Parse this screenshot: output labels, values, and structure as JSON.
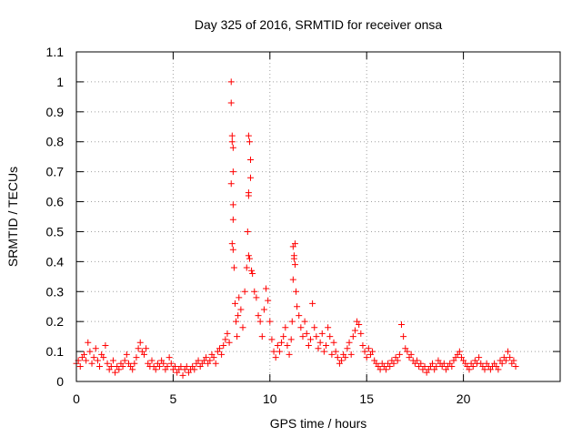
{
  "chart_data": {
    "type": "scatter",
    "title": "Day 325 of 2016, SRMTID for receiver onsa",
    "xlabel": "GPS time / hours",
    "ylabel": "SRMTID / TECUs",
    "xlim": [
      0,
      25
    ],
    "ylim": [
      0,
      1.1
    ],
    "xticks": [
      0,
      5,
      10,
      15,
      20
    ],
    "xtick_labels": [
      "0",
      "5",
      "10",
      "15",
      "20"
    ],
    "yticks": [
      0,
      0.1,
      0.2,
      0.3,
      0.4,
      0.5,
      0.6,
      0.7,
      0.8,
      0.9,
      1,
      1.1
    ],
    "ytick_labels": [
      "0",
      "0.1",
      "0.2",
      "0.3",
      "0.4",
      "0.5",
      "0.6",
      "0.7",
      "0.8",
      "0.9",
      "1",
      "1.1"
    ],
    "grid": true,
    "legend": "none",
    "marker": "+",
    "color": "#ff0000",
    "series": [
      {
        "name": "SRMTID",
        "points": [
          [
            0.0,
            0.06
          ],
          [
            0.1,
            0.07
          ],
          [
            0.2,
            0.05
          ],
          [
            0.3,
            0.08
          ],
          [
            0.4,
            0.09
          ],
          [
            0.5,
            0.07
          ],
          [
            0.6,
            0.13
          ],
          [
            0.7,
            0.1
          ],
          [
            0.8,
            0.06
          ],
          [
            0.9,
            0.08
          ],
          [
            1.0,
            0.11
          ],
          [
            1.1,
            0.07
          ],
          [
            1.2,
            0.05
          ],
          [
            1.3,
            0.09
          ],
          [
            1.4,
            0.08
          ],
          [
            1.5,
            0.12
          ],
          [
            1.6,
            0.06
          ],
          [
            1.7,
            0.04
          ],
          [
            1.8,
            0.05
          ],
          [
            1.9,
            0.07
          ],
          [
            2.0,
            0.03
          ],
          [
            2.1,
            0.05
          ],
          [
            2.2,
            0.04
          ],
          [
            2.3,
            0.06
          ],
          [
            2.4,
            0.05
          ],
          [
            2.5,
            0.07
          ],
          [
            2.6,
            0.09
          ],
          [
            2.7,
            0.06
          ],
          [
            2.8,
            0.05
          ],
          [
            2.9,
            0.04
          ],
          [
            3.0,
            0.06
          ],
          [
            3.1,
            0.08
          ],
          [
            3.2,
            0.11
          ],
          [
            3.3,
            0.13
          ],
          [
            3.4,
            0.1
          ],
          [
            3.5,
            0.09
          ],
          [
            3.6,
            0.11
          ],
          [
            3.7,
            0.06
          ],
          [
            3.8,
            0.05
          ],
          [
            3.9,
            0.07
          ],
          [
            4.0,
            0.05
          ],
          [
            4.1,
            0.04
          ],
          [
            4.2,
            0.06
          ],
          [
            4.3,
            0.05
          ],
          [
            4.4,
            0.07
          ],
          [
            4.5,
            0.06
          ],
          [
            4.6,
            0.04
          ],
          [
            4.7,
            0.05
          ],
          [
            4.8,
            0.08
          ],
          [
            4.9,
            0.06
          ],
          [
            5.0,
            0.04
          ],
          [
            5.1,
            0.05
          ],
          [
            5.2,
            0.03
          ],
          [
            5.3,
            0.04
          ],
          [
            5.4,
            0.05
          ],
          [
            5.5,
            0.02
          ],
          [
            5.6,
            0.04
          ],
          [
            5.7,
            0.05
          ],
          [
            5.8,
            0.03
          ],
          [
            5.9,
            0.04
          ],
          [
            6.0,
            0.05
          ],
          [
            6.1,
            0.04
          ],
          [
            6.2,
            0.06
          ],
          [
            6.3,
            0.07
          ],
          [
            6.4,
            0.05
          ],
          [
            6.5,
            0.06
          ],
          [
            6.6,
            0.07
          ],
          [
            6.7,
            0.08
          ],
          [
            6.8,
            0.06
          ],
          [
            6.9,
            0.07
          ],
          [
            7.0,
            0.09
          ],
          [
            7.1,
            0.08
          ],
          [
            7.2,
            0.06
          ],
          [
            7.3,
            0.1
          ],
          [
            7.4,
            0.11
          ],
          [
            7.5,
            0.09
          ],
          [
            7.6,
            0.12
          ],
          [
            7.7,
            0.14
          ],
          [
            7.8,
            0.16
          ],
          [
            7.9,
            0.13
          ],
          [
            8.0,
            1.0
          ],
          [
            8.0,
            0.93
          ],
          [
            8.05,
            0.82
          ],
          [
            8.05,
            0.8
          ],
          [
            8.1,
            0.78
          ],
          [
            8.1,
            0.7
          ],
          [
            8.0,
            0.66
          ],
          [
            8.1,
            0.59
          ],
          [
            8.1,
            0.54
          ],
          [
            8.05,
            0.46
          ],
          [
            8.1,
            0.44
          ],
          [
            8.15,
            0.38
          ],
          [
            8.2,
            0.26
          ],
          [
            8.25,
            0.2
          ],
          [
            8.3,
            0.15
          ],
          [
            8.35,
            0.22
          ],
          [
            8.4,
            0.28
          ],
          [
            8.5,
            0.24
          ],
          [
            8.6,
            0.18
          ],
          [
            8.7,
            0.3
          ],
          [
            8.8,
            0.38
          ],
          [
            8.9,
            0.42
          ],
          [
            8.95,
            0.41
          ],
          [
            8.85,
            0.5
          ],
          [
            8.9,
            0.62
          ],
          [
            8.9,
            0.63
          ],
          [
            9.0,
            0.68
          ],
          [
            9.0,
            0.74
          ],
          [
            8.9,
            0.82
          ],
          [
            8.95,
            0.8
          ],
          [
            9.05,
            0.37
          ],
          [
            9.1,
            0.36
          ],
          [
            9.2,
            0.3
          ],
          [
            9.3,
            0.28
          ],
          [
            9.4,
            0.22
          ],
          [
            9.5,
            0.2
          ],
          [
            9.6,
            0.15
          ],
          [
            9.7,
            0.24
          ],
          [
            9.8,
            0.31
          ],
          [
            9.9,
            0.27
          ],
          [
            10.0,
            0.2
          ],
          [
            10.1,
            0.14
          ],
          [
            10.2,
            0.1
          ],
          [
            10.3,
            0.08
          ],
          [
            10.4,
            0.12
          ],
          [
            10.5,
            0.1
          ],
          [
            10.6,
            0.13
          ],
          [
            10.7,
            0.15
          ],
          [
            10.8,
            0.18
          ],
          [
            10.9,
            0.12
          ],
          [
            11.0,
            0.09
          ],
          [
            11.1,
            0.14
          ],
          [
            11.15,
            0.2
          ],
          [
            11.2,
            0.34
          ],
          [
            11.25,
            0.42
          ],
          [
            11.2,
            0.45
          ],
          [
            11.3,
            0.46
          ],
          [
            11.25,
            0.41
          ],
          [
            11.3,
            0.39
          ],
          [
            11.35,
            0.3
          ],
          [
            11.4,
            0.25
          ],
          [
            11.5,
            0.22
          ],
          [
            11.6,
            0.18
          ],
          [
            11.7,
            0.15
          ],
          [
            11.8,
            0.2
          ],
          [
            11.9,
            0.16
          ],
          [
            12.0,
            0.12
          ],
          [
            12.1,
            0.14
          ],
          [
            12.2,
            0.26
          ],
          [
            12.3,
            0.18
          ],
          [
            12.4,
            0.15
          ],
          [
            12.5,
            0.11
          ],
          [
            12.6,
            0.13
          ],
          [
            12.7,
            0.16
          ],
          [
            12.8,
            0.1
          ],
          [
            12.9,
            0.12
          ],
          [
            13.0,
            0.18
          ],
          [
            13.1,
            0.15
          ],
          [
            13.2,
            0.09
          ],
          [
            13.3,
            0.13
          ],
          [
            13.4,
            0.1
          ],
          [
            13.5,
            0.08
          ],
          [
            13.6,
            0.06
          ],
          [
            13.7,
            0.07
          ],
          [
            13.8,
            0.09
          ],
          [
            13.9,
            0.08
          ],
          [
            14.0,
            0.11
          ],
          [
            14.1,
            0.13
          ],
          [
            14.2,
            0.09
          ],
          [
            14.3,
            0.15
          ],
          [
            14.4,
            0.17
          ],
          [
            14.5,
            0.2
          ],
          [
            14.6,
            0.19
          ],
          [
            14.7,
            0.16
          ],
          [
            14.8,
            0.12
          ],
          [
            14.9,
            0.1
          ],
          [
            15.0,
            0.08
          ],
          [
            15.1,
            0.11
          ],
          [
            15.2,
            0.09
          ],
          [
            15.3,
            0.1
          ],
          [
            15.4,
            0.07
          ],
          [
            15.5,
            0.06
          ],
          [
            15.6,
            0.05
          ],
          [
            15.7,
            0.04
          ],
          [
            15.8,
            0.06
          ],
          [
            15.9,
            0.05
          ],
          [
            16.0,
            0.04
          ],
          [
            16.1,
            0.06
          ],
          [
            16.2,
            0.05
          ],
          [
            16.3,
            0.07
          ],
          [
            16.4,
            0.06
          ],
          [
            16.5,
            0.08
          ],
          [
            16.6,
            0.07
          ],
          [
            16.7,
            0.09
          ],
          [
            16.8,
            0.19
          ],
          [
            16.9,
            0.15
          ],
          [
            17.0,
            0.11
          ],
          [
            17.1,
            0.1
          ],
          [
            17.2,
            0.08
          ],
          [
            17.3,
            0.09
          ],
          [
            17.4,
            0.07
          ],
          [
            17.5,
            0.06
          ],
          [
            17.6,
            0.07
          ],
          [
            17.7,
            0.05
          ],
          [
            17.8,
            0.06
          ],
          [
            17.9,
            0.04
          ],
          [
            18.0,
            0.05
          ],
          [
            18.1,
            0.03
          ],
          [
            18.2,
            0.04
          ],
          [
            18.3,
            0.05
          ],
          [
            18.4,
            0.06
          ],
          [
            18.5,
            0.04
          ],
          [
            18.6,
            0.05
          ],
          [
            18.7,
            0.07
          ],
          [
            18.8,
            0.06
          ],
          [
            18.9,
            0.05
          ],
          [
            19.0,
            0.06
          ],
          [
            19.1,
            0.04
          ],
          [
            19.2,
            0.05
          ],
          [
            19.3,
            0.06
          ],
          [
            19.4,
            0.05
          ],
          [
            19.5,
            0.07
          ],
          [
            19.6,
            0.08
          ],
          [
            19.7,
            0.09
          ],
          [
            19.8,
            0.1
          ],
          [
            19.9,
            0.08
          ],
          [
            20.0,
            0.07
          ],
          [
            20.1,
            0.06
          ],
          [
            20.2,
            0.05
          ],
          [
            20.3,
            0.04
          ],
          [
            20.4,
            0.06
          ],
          [
            20.5,
            0.05
          ],
          [
            20.6,
            0.07
          ],
          [
            20.7,
            0.06
          ],
          [
            20.8,
            0.08
          ],
          [
            20.9,
            0.06
          ],
          [
            21.0,
            0.05
          ],
          [
            21.1,
            0.04
          ],
          [
            21.2,
            0.06
          ],
          [
            21.3,
            0.05
          ],
          [
            21.4,
            0.04
          ],
          [
            21.5,
            0.05
          ],
          [
            21.6,
            0.06
          ],
          [
            21.7,
            0.05
          ],
          [
            21.8,
            0.04
          ],
          [
            21.9,
            0.07
          ],
          [
            22.0,
            0.06
          ],
          [
            22.1,
            0.08
          ],
          [
            22.2,
            0.07
          ],
          [
            22.3,
            0.1
          ],
          [
            22.4,
            0.08
          ],
          [
            22.5,
            0.06
          ],
          [
            22.6,
            0.07
          ],
          [
            22.7,
            0.05
          ]
        ]
      }
    ]
  }
}
